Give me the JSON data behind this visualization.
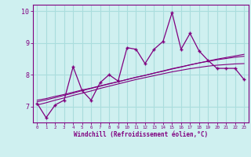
{
  "xlabel": "Windchill (Refroidissement éolien,°C)",
  "ylabel": "",
  "bg_color": "#cff0f0",
  "line_color": "#800080",
  "grid_color": "#aadddd",
  "x_data": [
    0,
    1,
    2,
    3,
    4,
    5,
    6,
    7,
    8,
    9,
    10,
    11,
    12,
    13,
    14,
    15,
    16,
    17,
    18,
    19,
    20,
    21,
    22,
    23
  ],
  "y_main": [
    7.1,
    6.65,
    7.05,
    7.2,
    8.25,
    7.5,
    7.2,
    7.75,
    8.0,
    7.8,
    8.85,
    8.8,
    8.35,
    8.8,
    9.05,
    9.95,
    8.8,
    9.3,
    8.75,
    8.45,
    8.2,
    8.2,
    8.2,
    7.85
  ],
  "y_linear1": [
    7.2,
    7.25,
    7.32,
    7.38,
    7.45,
    7.52,
    7.58,
    7.65,
    7.72,
    7.78,
    7.85,
    7.92,
    7.98,
    8.05,
    8.11,
    8.18,
    8.24,
    8.31,
    8.37,
    8.43,
    8.49,
    8.54,
    8.59,
    8.64
  ],
  "y_linear2": [
    7.15,
    7.21,
    7.28,
    7.35,
    7.42,
    7.5,
    7.57,
    7.64,
    7.71,
    7.78,
    7.85,
    7.92,
    7.98,
    8.05,
    8.12,
    8.19,
    8.25,
    8.31,
    8.37,
    8.42,
    8.47,
    8.51,
    8.55,
    8.58
  ],
  "y_linear3": [
    7.05,
    7.12,
    7.2,
    7.27,
    7.35,
    7.42,
    7.49,
    7.57,
    7.64,
    7.71,
    7.78,
    7.85,
    7.91,
    7.97,
    8.03,
    8.09,
    8.14,
    8.19,
    8.23,
    8.27,
    8.3,
    8.32,
    8.34,
    8.35
  ],
  "ylim": [
    6.5,
    10.2
  ],
  "yticks": [
    7,
    8,
    9,
    10
  ],
  "xlim": [
    -0.5,
    23.5
  ],
  "xticks": [
    0,
    1,
    2,
    3,
    4,
    5,
    6,
    7,
    8,
    9,
    10,
    11,
    12,
    13,
    14,
    15,
    16,
    17,
    18,
    19,
    20,
    21,
    22,
    23
  ]
}
